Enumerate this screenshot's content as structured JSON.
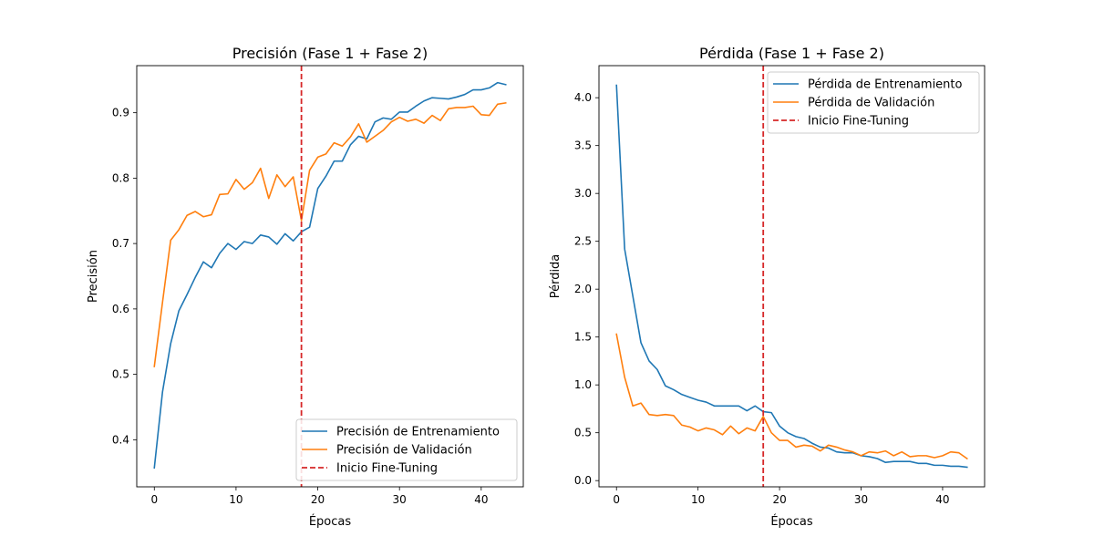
{
  "colors": {
    "train": "#1f77b4",
    "val": "#ff7f0e",
    "finetune": "#d62728"
  },
  "chart_data": [
    {
      "type": "line",
      "title": "Precisión (Fase 1 + Fase 2)",
      "xlabel": "Épocas",
      "ylabel": "Precisión",
      "xlim": [
        -2.15,
        45.15
      ],
      "ylim": [
        0.328,
        0.972
      ],
      "xticks": [
        0,
        10,
        20,
        30,
        40
      ],
      "yticks": [
        0.4,
        0.5,
        0.6,
        0.7,
        0.8,
        0.9
      ],
      "grid": false,
      "legend_position": "lower-right",
      "fine_tuning_epoch": 18,
      "fine_tuning_label": "Inicio Fine-Tuning",
      "series": [
        {
          "name": "Precisión de Entrenamiento",
          "color_key": "train",
          "values": [
            0.357,
            0.473,
            0.547,
            0.597,
            0.622,
            0.648,
            0.672,
            0.663,
            0.685,
            0.7,
            0.691,
            0.703,
            0.7,
            0.713,
            0.71,
            0.699,
            0.715,
            0.704,
            0.718,
            0.725,
            0.784,
            0.803,
            0.826,
            0.826,
            0.851,
            0.864,
            0.86,
            0.886,
            0.892,
            0.89,
            0.901,
            0.901,
            0.91,
            0.918,
            0.923,
            0.922,
            0.921,
            0.924,
            0.928,
            0.935,
            0.935,
            0.938,
            0.946,
            0.943
          ]
        },
        {
          "name": "Precisión de Validación",
          "color_key": "val",
          "values": [
            0.512,
            0.61,
            0.705,
            0.721,
            0.743,
            0.749,
            0.741,
            0.744,
            0.775,
            0.776,
            0.798,
            0.783,
            0.793,
            0.815,
            0.769,
            0.805,
            0.787,
            0.802,
            0.735,
            0.812,
            0.832,
            0.837,
            0.854,
            0.849,
            0.863,
            0.883,
            0.855,
            0.864,
            0.873,
            0.886,
            0.893,
            0.887,
            0.89,
            0.884,
            0.896,
            0.888,
            0.906,
            0.908,
            0.908,
            0.91,
            0.897,
            0.896,
            0.913,
            0.915
          ]
        }
      ]
    },
    {
      "type": "line",
      "title": "Pérdida (Fase 1 + Fase 2)",
      "xlabel": "Épocas",
      "ylabel": "Pérdida",
      "xlim": [
        -2.15,
        45.15
      ],
      "ylim": [
        -0.065,
        4.335
      ],
      "xticks": [
        0,
        10,
        20,
        30,
        40
      ],
      "yticks": [
        0.0,
        0.5,
        1.0,
        1.5,
        2.0,
        2.5,
        3.0,
        3.5,
        4.0
      ],
      "grid": false,
      "legend_position": "upper-right",
      "fine_tuning_epoch": 18,
      "fine_tuning_label": "Inicio Fine-Tuning",
      "series": [
        {
          "name": "Pérdida de Entrenamiento",
          "color_key": "train",
          "values": [
            4.13,
            2.42,
            1.93,
            1.44,
            1.25,
            1.16,
            0.99,
            0.95,
            0.9,
            0.87,
            0.84,
            0.82,
            0.78,
            0.78,
            0.78,
            0.78,
            0.73,
            0.78,
            0.72,
            0.71,
            0.57,
            0.5,
            0.46,
            0.44,
            0.39,
            0.35,
            0.34,
            0.3,
            0.29,
            0.29,
            0.26,
            0.25,
            0.23,
            0.19,
            0.2,
            0.2,
            0.2,
            0.18,
            0.18,
            0.16,
            0.16,
            0.15,
            0.15,
            0.14
          ]
        },
        {
          "name": "Pérdida de Validación",
          "color_key": "val",
          "values": [
            1.53,
            1.08,
            0.78,
            0.81,
            0.69,
            0.68,
            0.69,
            0.68,
            0.58,
            0.56,
            0.52,
            0.55,
            0.53,
            0.48,
            0.57,
            0.49,
            0.55,
            0.52,
            0.67,
            0.5,
            0.42,
            0.42,
            0.35,
            0.37,
            0.36,
            0.31,
            0.37,
            0.35,
            0.32,
            0.3,
            0.26,
            0.3,
            0.29,
            0.31,
            0.26,
            0.3,
            0.25,
            0.26,
            0.26,
            0.24,
            0.26,
            0.3,
            0.29,
            0.23
          ]
        }
      ]
    }
  ]
}
